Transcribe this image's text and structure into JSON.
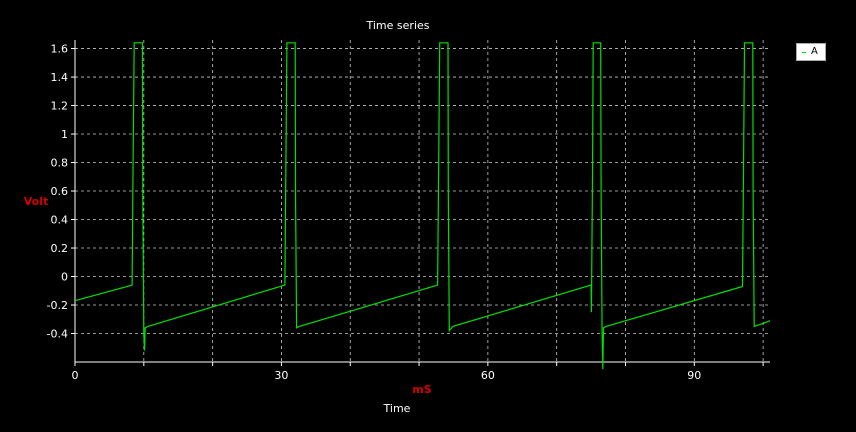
{
  "chart_data": {
    "type": "line",
    "title": "Time series",
    "xlabel": "mS",
    "xcaption": "Time",
    "ylabel": "Volt",
    "xlim": [
      0,
      101
    ],
    "ylim": [
      -0.6,
      1.66
    ],
    "x_ticks": [
      0,
      30,
      60,
      90
    ],
    "y_ticks": [
      -0.4,
      -0.2,
      0,
      0.2,
      0.4,
      0.6,
      0.8,
      1,
      1.2,
      1.4,
      1.6
    ],
    "y_tick_labels": [
      "-0.4",
      "-0.2",
      "0",
      "0.2",
      "0.4",
      "0.6",
      "0.8",
      "1",
      "1.2",
      "1.4",
      "1.6"
    ],
    "grid": true,
    "legend_position": "top-right",
    "colors": {
      "background": "#000000",
      "line": "#00e000",
      "grid": "#c8c8c8",
      "axis_label": "#d40000"
    },
    "series": [
      {
        "name": "A",
        "points": [
          [
            0,
            -0.17
          ],
          [
            8.3,
            -0.06
          ],
          [
            8.45,
            0.8
          ],
          [
            8.6,
            1.64
          ],
          [
            9.8,
            1.64
          ],
          [
            9.85,
            0.55
          ],
          [
            10.0,
            -0.4
          ],
          [
            10.1,
            -0.52
          ],
          [
            10.2,
            -0.36
          ],
          [
            10.6,
            -0.35
          ],
          [
            30.5,
            -0.06
          ],
          [
            30.65,
            0.8
          ],
          [
            30.8,
            1.64
          ],
          [
            32.0,
            1.64
          ],
          [
            32.05,
            0.6
          ],
          [
            32.2,
            -0.36
          ],
          [
            32.6,
            -0.35
          ],
          [
            52.7,
            -0.06
          ],
          [
            52.85,
            0.8
          ],
          [
            53.0,
            1.64
          ],
          [
            54.2,
            1.64
          ],
          [
            54.25,
            0.6
          ],
          [
            54.4,
            -0.38
          ],
          [
            54.9,
            -0.35
          ],
          [
            75.0,
            -0.06
          ],
          [
            75.05,
            -0.25
          ],
          [
            75.2,
            0.7
          ],
          [
            75.3,
            1.64
          ],
          [
            76.4,
            1.64
          ],
          [
            76.45,
            0.6
          ],
          [
            76.6,
            -0.4
          ],
          [
            76.7,
            -0.65
          ],
          [
            76.8,
            -0.36
          ],
          [
            77.2,
            -0.35
          ],
          [
            97.0,
            -0.07
          ],
          [
            97.15,
            0.75
          ],
          [
            97.3,
            1.64
          ],
          [
            98.5,
            1.64
          ],
          [
            98.55,
            0.6
          ],
          [
            98.7,
            -0.35
          ],
          [
            100.0,
            -0.33
          ],
          [
            101.0,
            -0.31
          ]
        ]
      }
    ]
  }
}
